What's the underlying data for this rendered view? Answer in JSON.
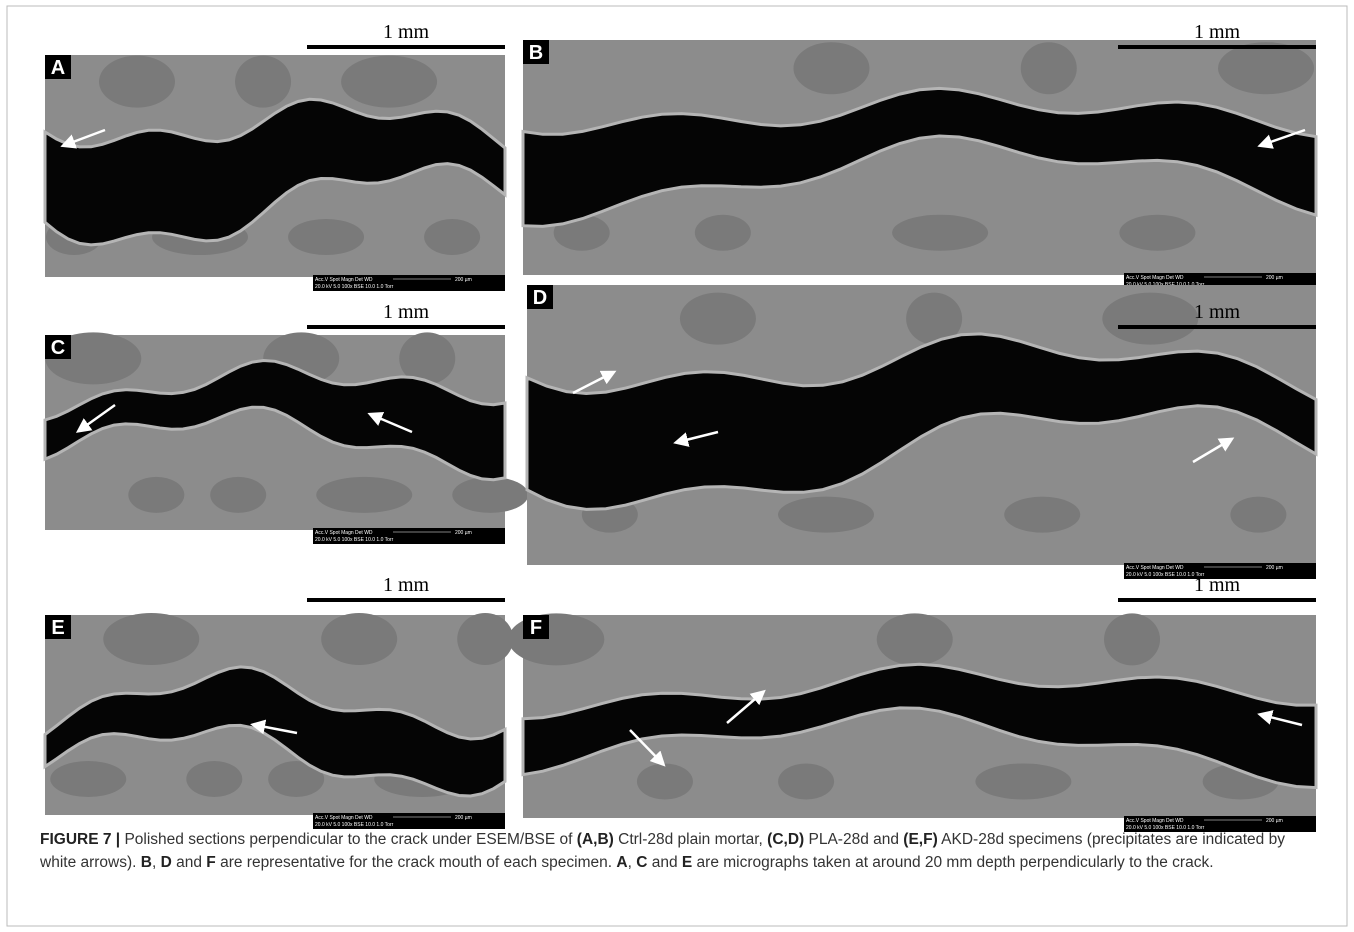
{
  "panels": [
    {
      "label": "A",
      "scale": "1 mm",
      "info_top": "Acc.V  Spot Magn   Det  WD",
      "info_bottom": "20.0 kV 5.0  100x   BSE 10.0  1.0 Torr",
      "info_scale": "200 µm"
    },
    {
      "label": "B",
      "scale": "1 mm",
      "info_top": "Acc.V  Spot Magn   Det  WD",
      "info_bottom": "20.0 kV 5.0  100x   BSE 10.0  1.0 Torr",
      "info_scale": "200 µm"
    },
    {
      "label": "C",
      "scale": "1 mm",
      "info_top": "Acc.V  Spot Magn   Det  WD",
      "info_bottom": "20.0 kV 5.0  100x   BSE 10.0  1.0 Torr",
      "info_scale": "200 µm"
    },
    {
      "label": "D",
      "scale": "1 mm",
      "info_top": "Acc.V  Spot Magn   Det  WD",
      "info_bottom": "20.0 kV 5.0  100x   BSE 10.0  1.0 Torr",
      "info_scale": "200 µm"
    },
    {
      "label": "E",
      "scale": "1 mm",
      "info_top": "Acc.V  Spot Magn   Det  WD",
      "info_bottom": "20.0 kV 5.0  100x   BSE 10.0  1.0 Torr",
      "info_scale": "200 µm"
    },
    {
      "label": "F",
      "scale": "1 mm",
      "info_top": "Acc.V  Spot Magn   Det  WD",
      "info_bottom": "20.0 kV 5.0  100x   BSE 10.0  1.0 Torr",
      "info_scale": "200 µm"
    }
  ],
  "caption": {
    "segments": [
      {
        "text": "FIGURE 7 |",
        "bold": true
      },
      {
        "text": " Polished sections perpendicular to the crack under ESEM/BSE of ",
        "bold": false
      },
      {
        "text": "(A,B)",
        "bold": true
      },
      {
        "text": " Ctrl-28d plain mortar, ",
        "bold": false
      },
      {
        "text": "(C,D)",
        "bold": true
      },
      {
        "text": " PLA-28d and ",
        "bold": false
      },
      {
        "text": "(E,F)",
        "bold": true
      },
      {
        "text": " AKD-28d specimens (precipitates are indicated by white arrows). ",
        "bold": false
      },
      {
        "text": "B",
        "bold": true
      },
      {
        "text": ", ",
        "bold": false
      },
      {
        "text": "D",
        "bold": true
      },
      {
        "text": " and ",
        "bold": false
      },
      {
        "text": "F",
        "bold": true
      },
      {
        "text": " are representative for the crack mouth of each specimen. ",
        "bold": false
      },
      {
        "text": "A",
        "bold": true
      },
      {
        "text": ", ",
        "bold": false
      },
      {
        "text": "C",
        "bold": true
      },
      {
        "text": " and ",
        "bold": false
      },
      {
        "text": "E",
        "bold": true
      },
      {
        "text": " are micrographs taken at around 20 mm depth perpendicularly to the crack.",
        "bold": false
      }
    ]
  }
}
